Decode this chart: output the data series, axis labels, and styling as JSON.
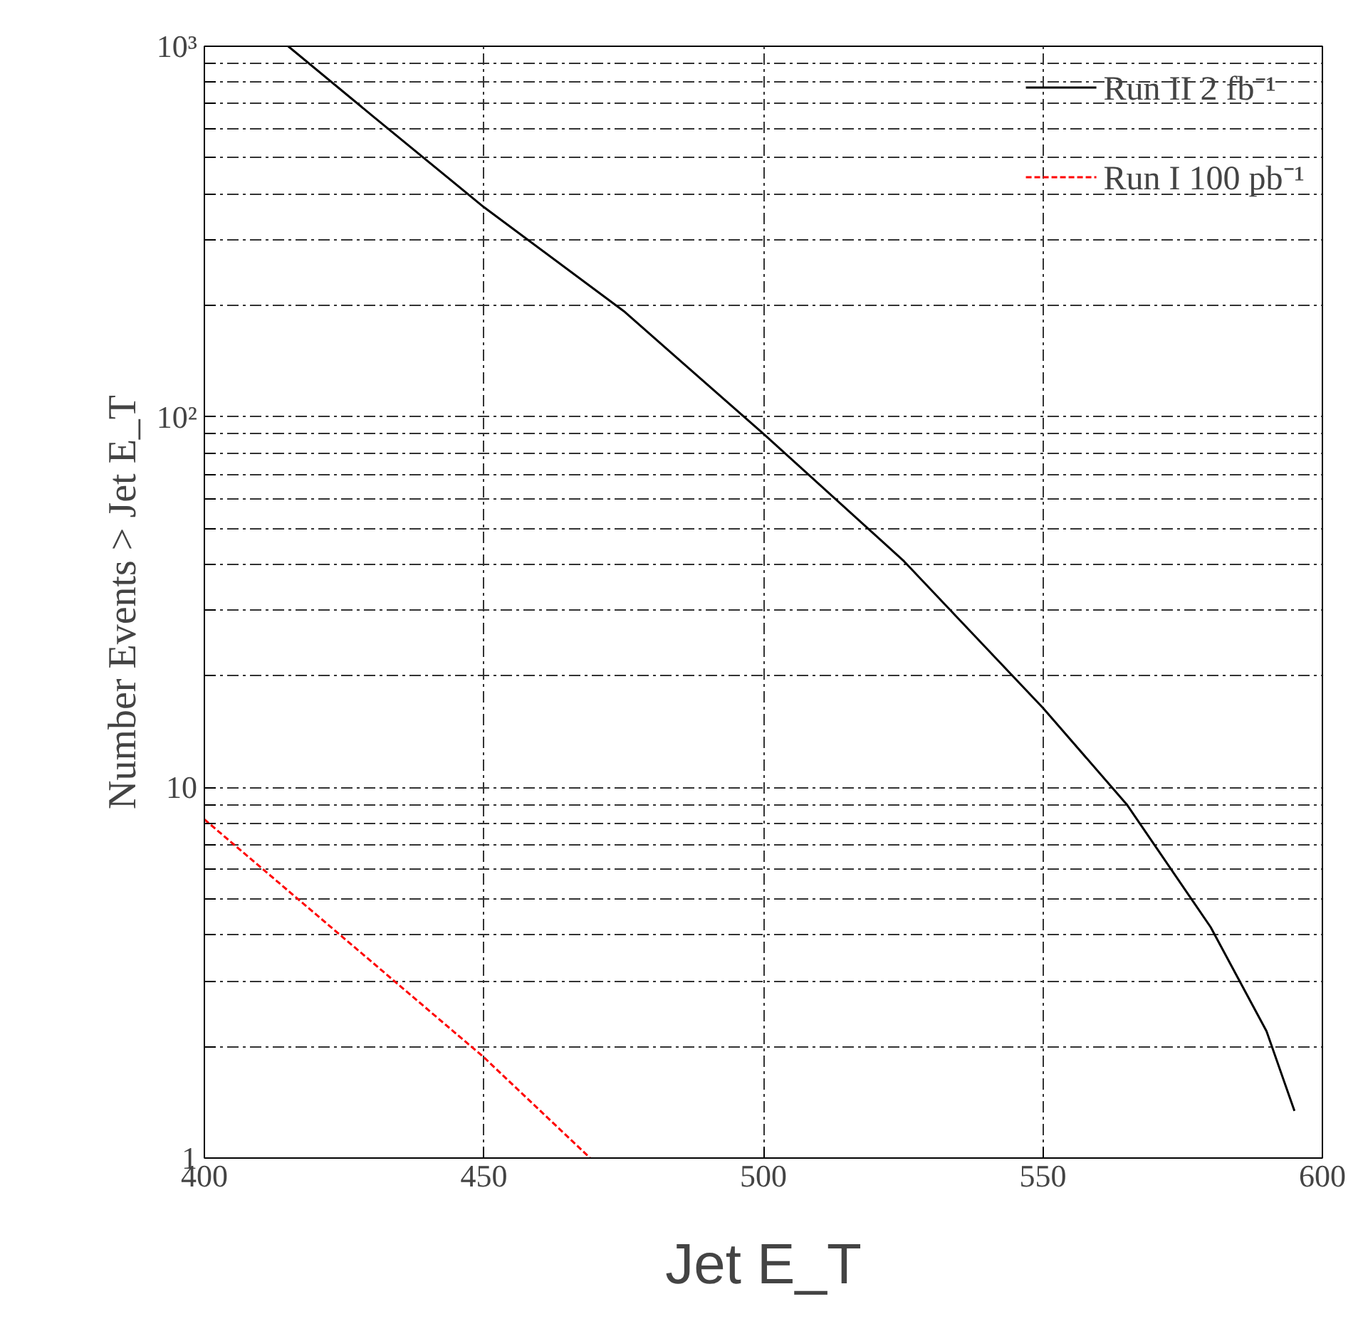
{
  "chart_data": {
    "type": "line",
    "xlabel": "Jet E_T",
    "ylabel": "Number Events > Jet E_T",
    "log": "y",
    "grid": true,
    "legend": "top right",
    "xlim": [
      400,
      600
    ],
    "xticks": [
      400,
      450,
      500,
      550,
      600
    ],
    "ylim": [
      1,
      1000
    ],
    "yticks": [
      1,
      {
        "value": 2,
        "label": null
      },
      {
        "value": 3,
        "label": null
      },
      {
        "value": 4,
        "label": null
      },
      {
        "value": 5,
        "label": null
      },
      {
        "value": 6,
        "label": null
      },
      {
        "value": 7,
        "label": null
      },
      {
        "value": 8,
        "label": null
      },
      {
        "value": 9,
        "label": null
      },
      10,
      {
        "value": 20,
        "label": null
      },
      {
        "value": 30,
        "label": null
      },
      {
        "value": 40,
        "label": null
      },
      {
        "value": 50,
        "label": null
      },
      {
        "value": 60,
        "label": null
      },
      {
        "value": 70,
        "label": null
      },
      {
        "value": 80,
        "label": null
      },
      {
        "value": 90,
        "label": null
      },
      {
        "value": 100,
        "label": "10²"
      },
      {
        "value": 200,
        "label": null
      },
      {
        "value": 300,
        "label": null
      },
      {
        "value": 400,
        "label": null
      },
      {
        "value": 500,
        "label": null
      },
      {
        "value": 600,
        "label": null
      },
      {
        "value": 700,
        "label": null
      },
      {
        "value": 800,
        "label": null
      },
      {
        "value": 900,
        "label": null
      },
      {
        "value": 1000,
        "label": "10³"
      }
    ],
    "series": [
      {
        "name": "Run II 2 fb⁻¹",
        "color": "#000000",
        "line_style": "solid",
        "x": [
          415,
          430,
          450,
          475,
          500,
          525,
          550,
          565,
          580,
          590,
          595
        ],
        "values": [
          1000,
          650,
          368,
          193,
          90,
          41,
          16.4,
          9,
          4.2,
          2.2,
          1.34
        ]
      },
      {
        "name": "Run I 100 pb⁻¹",
        "color": "#ff0000",
        "line_style": "dashed",
        "x": [
          400,
          450,
          469
        ],
        "values": [
          8.2,
          1.87,
          1
        ]
      }
    ]
  }
}
